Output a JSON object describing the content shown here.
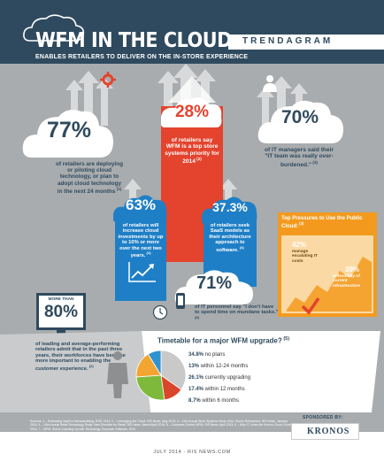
{
  "header": {
    "title": "WFM IN THE CLOUD",
    "subtitle": "ENABLES RETAILERS TO DELIVER ON THE IN-STORE EXPERIENCE",
    "tag": "TRENDAGRAM"
  },
  "stats": {
    "s77": {
      "value": "77%",
      "text": "of retailers are deploying or piloting cloud technology, or plan to adopt cloud technology in the next 24 months",
      "note": "(1)"
    },
    "s28": {
      "value": "28%",
      "text": "of retailers say WFM is a top store systems priority for 2014",
      "note": "(2)"
    },
    "s70": {
      "value": "70%",
      "text": "of IT managers said their \"IT team was really over-burdened.\"",
      "note": "(3)"
    },
    "s63": {
      "value": "63%",
      "text": "of retailers will increase cloud investments by up to 10% or more over the next two years.",
      "note": "(1)"
    },
    "s373": {
      "value": "37.3%",
      "text": "of retailers seek SaaS models as their architecture approach to software.",
      "note": "(4)"
    },
    "s71": {
      "value": "71%",
      "text": "of IT personnel say \"I don't have to spend time on mundane tasks.\"",
      "note": "(6)"
    },
    "s80": {
      "pre": "MORE THAN",
      "value": "80%",
      "text": "of leading and average-performing retailers admit that in the past three years, their workforces have become more important to enabling the customer experience.",
      "note": "(2)"
    }
  },
  "pressures": {
    "title": "Top Pressures to Use the Public Cloud:",
    "note": "(3)",
    "items": [
      {
        "value": "42%",
        "text": "manage escalating IT costs"
      },
      {
        "value": "39%",
        "text": "inflexibility of current infrastructure"
      }
    ]
  },
  "chart_data": {
    "type": "pie",
    "title": "Timetable for a major WFM upgrade?",
    "note": "(5)",
    "categories": [
      "no plans",
      "within 12-24 months",
      "currently upgrading",
      "within 12 months",
      "within 6 months"
    ],
    "values": [
      34.8,
      13,
      26.1,
      17.4,
      8.7
    ],
    "labels": [
      "34.8% no plans",
      "13% within 12-24 months",
      "26.1% currently upgrading",
      "17.4% within 12 months",
      "8.7% within 6 months"
    ],
    "colors": [
      "#c9c9c9",
      "#d9462b",
      "#7fb93c",
      "#f2a531",
      "#2f93cf"
    ]
  },
  "footer": {
    "sources": "Sources: 1 – Embracing SaaS in Merchandising, RSR, 2014; 2 – Leveraging the Cloud, RIS News, May 2013; 3 – 11th Annual Store Systems Study 2014, Stores Reinvented, RIS News, January 2014; 4 – 14th Annual Retail Technology Study: New Direction for Retail, RIS News, March/April 2014; 5 – Customer-Centric WFM, RIS News, April 2013; 6 – Why IT Loves the Kronos Cloud, Kronos, 2014; 7 – WFM: Stores Catching Up with Technology, Empower Software, 2014",
    "date": "JULY 2014 · RIS NEWS.COM",
    "sponsor_label": "SPONSORED BY:",
    "sponsor": "KRONOS"
  },
  "colors": {
    "navy": "#2f4a5e",
    "gray": "#a9acae",
    "red": "#e4432d",
    "blue": "#1f7fc6",
    "orange": "#f39a1e",
    "white": "#ffffff"
  }
}
